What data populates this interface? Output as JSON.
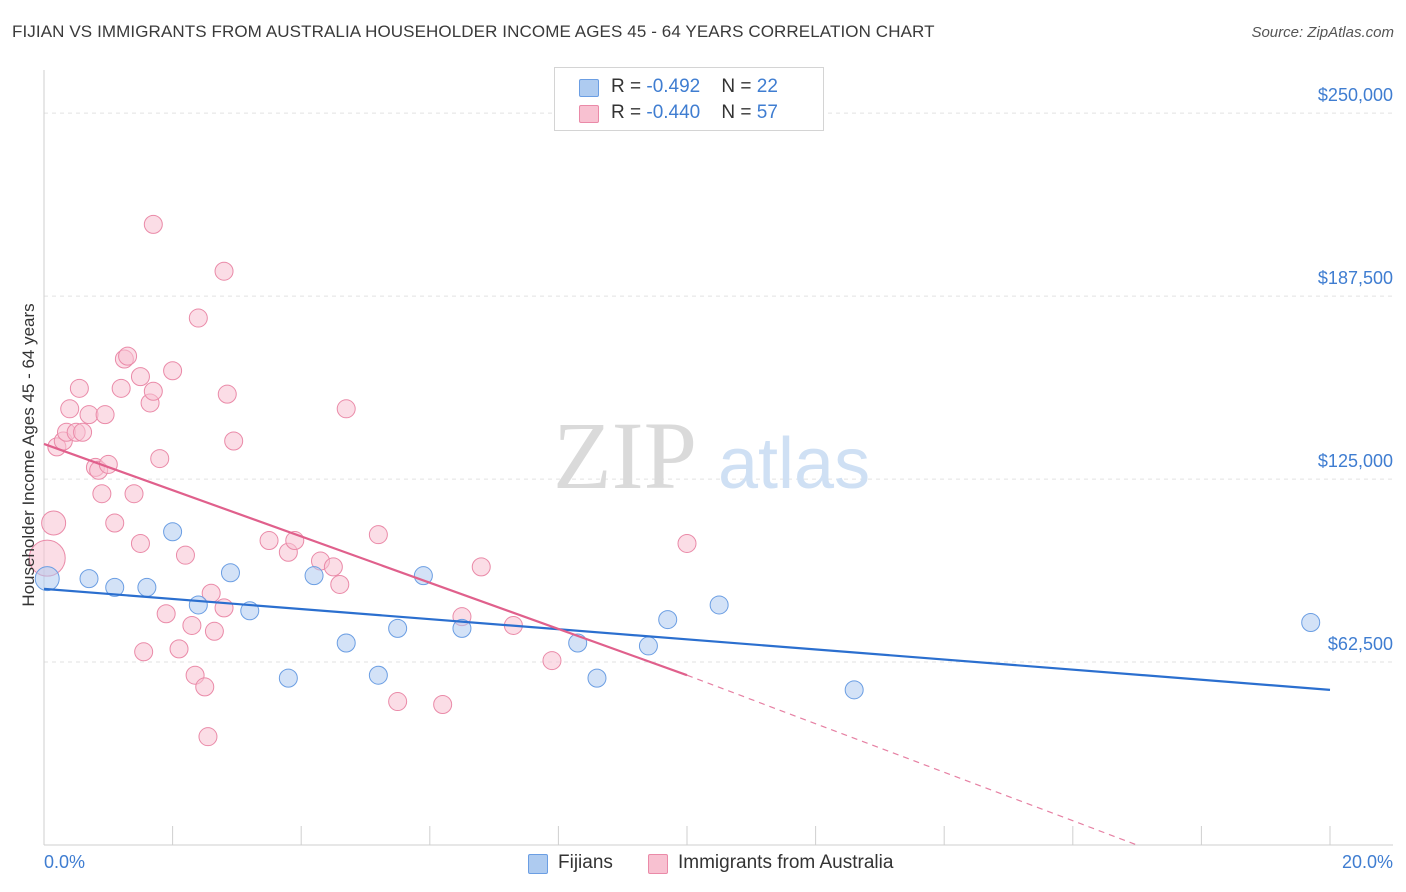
{
  "title": "FIJIAN VS IMMIGRANTS FROM AUSTRALIA HOUSEHOLDER INCOME AGES 45 - 64 YEARS CORRELATION CHART",
  "source": "Source: ZipAtlas.com",
  "watermark": {
    "zip": "ZIP",
    "atlas": "atlas"
  },
  "legend": {
    "rows": [
      {
        "r_label": "R = ",
        "r_value": "-0.492",
        "n_label": "N = ",
        "n_value": "22",
        "color": "#aecbf0",
        "stroke": "#6b9ee3"
      },
      {
        "r_label": "R = ",
        "r_value": "-0.440",
        "n_label": "N = ",
        "n_value": "57",
        "color": "#f8c1d1",
        "stroke": "#ea8aa8"
      }
    ]
  },
  "bottom_legend": [
    "Fijians",
    "Immigrants from Australia"
  ],
  "chart_data": {
    "type": "scatter",
    "title": "FIJIAN VS IMMIGRANTS FROM AUSTRALIA HOUSEHOLDER INCOME AGES 45 - 64 YEARS CORRELATION CHART",
    "xlabel": "",
    "ylabel": "Householder Income Ages 45 - 64 years",
    "xlim": [
      0,
      20
    ],
    "ylim": [
      0,
      262000
    ],
    "x_tick_labels": [
      "0.0%",
      "20.0%"
    ],
    "y_ticks": [
      62500,
      125000,
      187500,
      250000
    ],
    "y_tick_labels": [
      "$62,500",
      "$125,000",
      "$187,500",
      "$250,000"
    ],
    "grid": true,
    "series": [
      {
        "name": "Fijians",
        "color": "#aecbf0",
        "stroke": "#6b9ee3",
        "line_color": "#2b6fcf",
        "trend": {
          "x": [
            0,
            20
          ],
          "y": [
            87500,
            53000
          ]
        },
        "points": [
          [
            0.05,
            91000,
            12
          ],
          [
            0.7,
            91000,
            9
          ],
          [
            1.1,
            88000,
            9
          ],
          [
            1.6,
            88000,
            9
          ],
          [
            2.0,
            107000,
            9
          ],
          [
            2.4,
            82000,
            9
          ],
          [
            2.9,
            93000,
            9
          ],
          [
            3.2,
            80000,
            9
          ],
          [
            3.8,
            57000,
            9
          ],
          [
            4.2,
            92000,
            9
          ],
          [
            4.7,
            69000,
            9
          ],
          [
            5.2,
            58000,
            9
          ],
          [
            5.5,
            74000,
            9
          ],
          [
            5.9,
            92000,
            9
          ],
          [
            6.5,
            74000,
            9
          ],
          [
            8.3,
            69000,
            9
          ],
          [
            8.6,
            57000,
            9
          ],
          [
            9.4,
            68000,
            9
          ],
          [
            9.7,
            77000,
            9
          ],
          [
            10.5,
            82000,
            9
          ],
          [
            12.6,
            53000,
            9
          ],
          [
            19.7,
            76000,
            9
          ]
        ]
      },
      {
        "name": "Immigrants from Australia",
        "color": "#f8c1d1",
        "stroke": "#ea8aa8",
        "line_color": "#e0608c",
        "trend": {
          "x": [
            0,
            10
          ],
          "y": [
            137000,
            58000
          ]
        },
        "trend_dashed": {
          "x": [
            10,
            17
          ],
          "y": [
            58000,
            0
          ]
        },
        "points": [
          [
            0.05,
            98000,
            18
          ],
          [
            0.15,
            110000,
            12
          ],
          [
            0.2,
            136000,
            9
          ],
          [
            0.3,
            138000,
            9
          ],
          [
            0.35,
            141000,
            9
          ],
          [
            0.4,
            149000,
            9
          ],
          [
            0.5,
            141000,
            9
          ],
          [
            0.55,
            156000,
            9
          ],
          [
            0.6,
            141000,
            9
          ],
          [
            0.7,
            147000,
            9
          ],
          [
            0.8,
            129000,
            9
          ],
          [
            0.85,
            128000,
            9
          ],
          [
            0.9,
            120000,
            9
          ],
          [
            0.95,
            147000,
            9
          ],
          [
            1.0,
            130000,
            9
          ],
          [
            1.1,
            110000,
            9
          ],
          [
            1.2,
            156000,
            9
          ],
          [
            1.25,
            166000,
            9
          ],
          [
            1.3,
            167000,
            9
          ],
          [
            1.4,
            120000,
            9
          ],
          [
            1.5,
            103000,
            9
          ],
          [
            1.5,
            160000,
            9
          ],
          [
            1.55,
            66000,
            9
          ],
          [
            1.65,
            151000,
            9
          ],
          [
            1.7,
            155000,
            9
          ],
          [
            1.7,
            212000,
            9
          ],
          [
            1.8,
            132000,
            9
          ],
          [
            1.9,
            79000,
            9
          ],
          [
            2.0,
            162000,
            9
          ],
          [
            2.1,
            67000,
            9
          ],
          [
            2.2,
            99000,
            9
          ],
          [
            2.3,
            75000,
            9
          ],
          [
            2.35,
            58000,
            9
          ],
          [
            2.4,
            180000,
            9
          ],
          [
            2.5,
            54000,
            9
          ],
          [
            2.55,
            37000,
            9
          ],
          [
            2.6,
            86000,
            9
          ],
          [
            2.65,
            73000,
            9
          ],
          [
            2.8,
            81000,
            9
          ],
          [
            2.8,
            196000,
            9
          ],
          [
            2.85,
            154000,
            9
          ],
          [
            2.95,
            138000,
            9
          ],
          [
            3.5,
            104000,
            9
          ],
          [
            3.8,
            100000,
            9
          ],
          [
            3.9,
            104000,
            9
          ],
          [
            4.3,
            97000,
            9
          ],
          [
            4.5,
            95000,
            9
          ],
          [
            4.6,
            89000,
            9
          ],
          [
            4.7,
            149000,
            9
          ],
          [
            5.2,
            106000,
            9
          ],
          [
            5.5,
            49000,
            9
          ],
          [
            6.2,
            48000,
            9
          ],
          [
            6.5,
            78000,
            9
          ],
          [
            6.8,
            95000,
            9
          ],
          [
            7.3,
            75000,
            9
          ],
          [
            7.9,
            63000,
            9
          ],
          [
            10.0,
            103000,
            9
          ]
        ]
      }
    ]
  }
}
